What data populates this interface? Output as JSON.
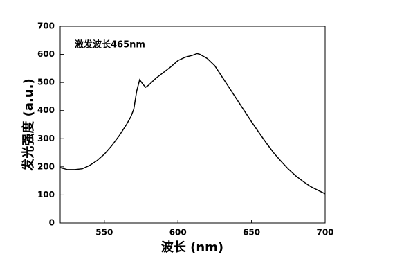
{
  "chart_data": {
    "type": "line",
    "annotation": "激发波长465nm",
    "x_label": "波长 (nm)",
    "y_label": "发光强度 (a.u.)",
    "x": [
      520,
      525,
      530,
      535,
      540,
      545,
      550,
      555,
      560,
      565,
      568,
      570,
      572,
      574,
      576,
      578,
      580,
      585,
      590,
      595,
      600,
      605,
      610,
      613,
      615,
      620,
      625,
      630,
      635,
      640,
      645,
      650,
      655,
      660,
      665,
      670,
      675,
      680,
      685,
      690,
      695,
      700
    ],
    "series": [
      {
        "color": "#000000",
        "values": [
          197,
          190,
          190,
          193,
          205,
          222,
          245,
          275,
          310,
          350,
          378,
          405,
          470,
          510,
          495,
          483,
          490,
          515,
          535,
          555,
          578,
          590,
          597,
          603,
          600,
          585,
          560,
          520,
          480,
          440,
          400,
          360,
          322,
          285,
          250,
          220,
          192,
          168,
          148,
          130,
          117,
          104
        ]
      }
    ],
    "xlim": [
      520,
      700
    ],
    "xticks": [
      550,
      600,
      650,
      700
    ],
    "ylim": [
      0,
      700
    ],
    "yticks": [
      0,
      100,
      200,
      300,
      400,
      500,
      600,
      700
    ]
  }
}
